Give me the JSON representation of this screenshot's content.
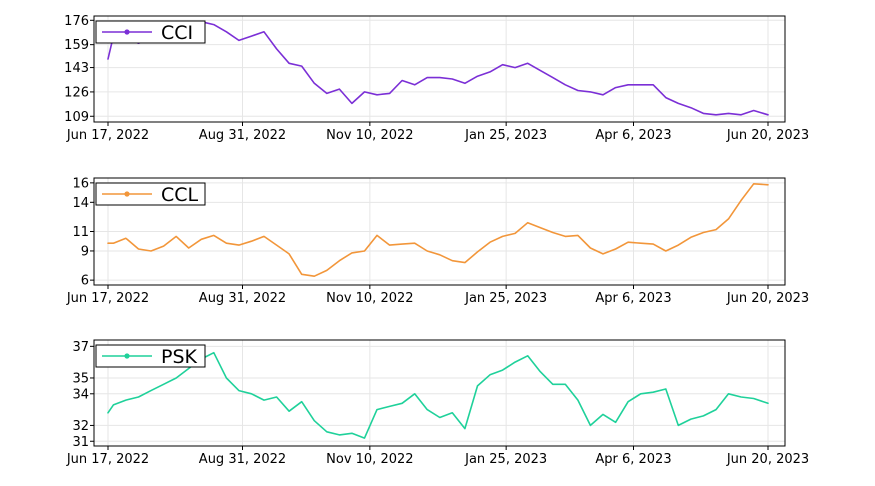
{
  "chart_data": [
    {
      "type": "line",
      "title": "",
      "series": [
        {
          "name": "CCI",
          "color": "#7b2fd6"
        }
      ],
      "x_start": "Jun 17, 2022",
      "x_end": "Jun 20, 2023",
      "x_ticks": [
        "Jun 17, 2022",
        "Aug 31, 2022",
        "Nov 10, 2022",
        "Jan 25, 2023",
        "Apr 6, 2023",
        "Jun 20, 2023"
      ],
      "y_ticks": [
        176,
        159,
        143,
        126,
        109
      ],
      "ylim": [
        105,
        179
      ],
      "grid": true,
      "legend": "top-left",
      "points": [
        [
          "Jun 17, 2022",
          149
        ],
        [
          "Jun 20, 2022",
          165
        ],
        [
          "Jun 27, 2022",
          163
        ],
        [
          "Jul 4, 2022",
          160
        ],
        [
          "Jul 11, 2022",
          163
        ],
        [
          "Jul 18, 2022",
          166
        ],
        [
          "Jul 25, 2022",
          168
        ],
        [
          "Aug 1, 2022",
          170
        ],
        [
          "Aug 8, 2022",
          175
        ],
        [
          "Aug 15, 2022",
          173
        ],
        [
          "Aug 22, 2022",
          168
        ],
        [
          "Aug 29, 2022",
          162
        ],
        [
          "Sep 5, 2022",
          165
        ],
        [
          "Sep 12, 2022",
          168
        ],
        [
          "Sep 19, 2022",
          156
        ],
        [
          "Sep 26, 2022",
          146
        ],
        [
          "Oct 3, 2022",
          144
        ],
        [
          "Oct 10, 2022",
          132
        ],
        [
          "Oct 17, 2022",
          125
        ],
        [
          "Oct 24, 2022",
          128
        ],
        [
          "Oct 31, 2022",
          118
        ],
        [
          "Nov 7, 2022",
          126
        ],
        [
          "Nov 14, 2022",
          124
        ],
        [
          "Nov 21, 2022",
          125
        ],
        [
          "Nov 28, 2022",
          134
        ],
        [
          "Dec 5, 2022",
          131
        ],
        [
          "Dec 12, 2022",
          136
        ],
        [
          "Dec 19, 2022",
          136
        ],
        [
          "Dec 26, 2022",
          135
        ],
        [
          "Jan 2, 2023",
          132
        ],
        [
          "Jan 9, 2023",
          137
        ],
        [
          "Jan 16, 2023",
          140
        ],
        [
          "Jan 23, 2023",
          145
        ],
        [
          "Jan 30, 2023",
          143
        ],
        [
          "Feb 6, 2023",
          146
        ],
        [
          "Feb 13, 2023",
          141
        ],
        [
          "Feb 20, 2023",
          136
        ],
        [
          "Feb 27, 2023",
          131
        ],
        [
          "Mar 6, 2023",
          127
        ],
        [
          "Mar 13, 2023",
          126
        ],
        [
          "Mar 20, 2023",
          124
        ],
        [
          "Mar 27, 2023",
          129
        ],
        [
          "Apr 3, 2023",
          131
        ],
        [
          "Apr 10, 2023",
          131
        ],
        [
          "Apr 17, 2023",
          131
        ],
        [
          "Apr 24, 2023",
          122
        ],
        [
          "May 1, 2023",
          118
        ],
        [
          "May 8, 2023",
          115
        ],
        [
          "May 15, 2023",
          111
        ],
        [
          "May 22, 2023",
          110
        ],
        [
          "May 29, 2023",
          111
        ],
        [
          "Jun 5, 2023",
          110
        ],
        [
          "Jun 12, 2023",
          113
        ],
        [
          "Jun 20, 2023",
          110
        ]
      ]
    },
    {
      "type": "line",
      "title": "",
      "series": [
        {
          "name": "CCL",
          "color": "#f2963a"
        }
      ],
      "x_start": "Jun 17, 2022",
      "x_end": "Jun 20, 2023",
      "x_ticks": [
        "Jun 17, 2022",
        "Aug 31, 2022",
        "Nov 10, 2022",
        "Jan 25, 2023",
        "Apr 6, 2023",
        "Jun 20, 2023"
      ],
      "y_ticks": [
        16,
        14,
        11,
        9,
        6
      ],
      "ylim": [
        5.5,
        16.5
      ],
      "grid": true,
      "legend": "top-left",
      "points": [
        [
          "Jun 17, 2022",
          9.8
        ],
        [
          "Jun 20, 2022",
          9.8
        ],
        [
          "Jun 27, 2022",
          10.3
        ],
        [
          "Jul 4, 2022",
          9.2
        ],
        [
          "Jul 11, 2022",
          9.0
        ],
        [
          "Jul 18, 2022",
          9.5
        ],
        [
          "Jul 25, 2022",
          10.5
        ],
        [
          "Aug 1, 2022",
          9.3
        ],
        [
          "Aug 8, 2022",
          10.2
        ],
        [
          "Aug 15, 2022",
          10.6
        ],
        [
          "Aug 22, 2022",
          9.8
        ],
        [
          "Aug 29, 2022",
          9.6
        ],
        [
          "Sep 5, 2022",
          10.0
        ],
        [
          "Sep 12, 2022",
          10.5
        ],
        [
          "Sep 19, 2022",
          9.6
        ],
        [
          "Sep 26, 2022",
          8.7
        ],
        [
          "Oct 3, 2022",
          6.6
        ],
        [
          "Oct 10, 2022",
          6.4
        ],
        [
          "Oct 17, 2022",
          7.0
        ],
        [
          "Oct 24, 2022",
          8.0
        ],
        [
          "Oct 31, 2022",
          8.8
        ],
        [
          "Nov 7, 2022",
          9.0
        ],
        [
          "Nov 14, 2022",
          10.6
        ],
        [
          "Nov 21, 2022",
          9.6
        ],
        [
          "Nov 28, 2022",
          9.7
        ],
        [
          "Dec 5, 2022",
          9.8
        ],
        [
          "Dec 12, 2022",
          9.0
        ],
        [
          "Dec 19, 2022",
          8.6
        ],
        [
          "Dec 26, 2022",
          8.0
        ],
        [
          "Jan 2, 2023",
          7.8
        ],
        [
          "Jan 9, 2023",
          8.9
        ],
        [
          "Jan 16, 2023",
          9.9
        ],
        [
          "Jan 23, 2023",
          10.5
        ],
        [
          "Jan 30, 2023",
          10.8
        ],
        [
          "Feb 6, 2023",
          11.9
        ],
        [
          "Feb 13, 2023",
          11.4
        ],
        [
          "Feb 20, 2023",
          10.9
        ],
        [
          "Feb 27, 2023",
          10.5
        ],
        [
          "Mar 6, 2023",
          10.6
        ],
        [
          "Mar 13, 2023",
          9.3
        ],
        [
          "Mar 20, 2023",
          8.7
        ],
        [
          "Mar 27, 2023",
          9.2
        ],
        [
          "Apr 3, 2023",
          9.9
        ],
        [
          "Apr 10, 2023",
          9.8
        ],
        [
          "Apr 17, 2023",
          9.7
        ],
        [
          "Apr 24, 2023",
          9.0
        ],
        [
          "May 1, 2023",
          9.6
        ],
        [
          "May 8, 2023",
          10.4
        ],
        [
          "May 15, 2023",
          10.9
        ],
        [
          "May 22, 2023",
          11.2
        ],
        [
          "May 29, 2023",
          12.3
        ],
        [
          "Jun 5, 2023",
          14.2
        ],
        [
          "Jun 12, 2023",
          15.9
        ],
        [
          "Jun 20, 2023",
          15.8
        ]
      ]
    },
    {
      "type": "line",
      "title": "",
      "series": [
        {
          "name": "PSK",
          "color": "#1fd19a"
        }
      ],
      "x_start": "Jun 17, 2022",
      "x_end": "Jun 20, 2023",
      "x_ticks": [
        "Jun 17, 2022",
        "Aug 31, 2022",
        "Nov 10, 2022",
        "Jan 25, 2023",
        "Apr 6, 2023",
        "Jun 20, 2023"
      ],
      "y_ticks": [
        37,
        35,
        34,
        32,
        31
      ],
      "ylim": [
        30.7,
        37.4
      ],
      "grid": true,
      "legend": "top-left",
      "points": [
        [
          "Jun 17, 2022",
          32.8
        ],
        [
          "Jun 20, 2022",
          33.3
        ],
        [
          "Jun 27, 2022",
          33.6
        ],
        [
          "Jul 4, 2022",
          33.8
        ],
        [
          "Jul 11, 2022",
          34.2
        ],
        [
          "Jul 18, 2022",
          34.6
        ],
        [
          "Jul 25, 2022",
          35.0
        ],
        [
          "Aug 1, 2022",
          35.6
        ],
        [
          "Aug 8, 2022",
          36.2
        ],
        [
          "Aug 15, 2022",
          36.6
        ],
        [
          "Aug 22, 2022",
          35.0
        ],
        [
          "Aug 29, 2022",
          34.2
        ],
        [
          "Sep 5, 2022",
          34.0
        ],
        [
          "Sep 12, 2022",
          33.6
        ],
        [
          "Sep 19, 2022",
          33.8
        ],
        [
          "Sep 26, 2022",
          32.9
        ],
        [
          "Oct 3, 2022",
          33.5
        ],
        [
          "Oct 10, 2022",
          32.3
        ],
        [
          "Oct 17, 2022",
          31.6
        ],
        [
          "Oct 24, 2022",
          31.4
        ],
        [
          "Oct 31, 2022",
          31.5
        ],
        [
          "Nov 7, 2022",
          31.2
        ],
        [
          "Nov 14, 2022",
          33.0
        ],
        [
          "Nov 21, 2022",
          33.2
        ],
        [
          "Nov 28, 2022",
          33.4
        ],
        [
          "Dec 5, 2022",
          34.0
        ],
        [
          "Dec 12, 2022",
          33.0
        ],
        [
          "Dec 19, 2022",
          32.5
        ],
        [
          "Dec 26, 2022",
          32.8
        ],
        [
          "Jan 2, 2023",
          31.8
        ],
        [
          "Jan 9, 2023",
          34.5
        ],
        [
          "Jan 16, 2023",
          35.2
        ],
        [
          "Jan 23, 2023",
          35.5
        ],
        [
          "Jan 30, 2023",
          36.0
        ],
        [
          "Feb 6, 2023",
          36.4
        ],
        [
          "Feb 13, 2023",
          35.4
        ],
        [
          "Feb 20, 2023",
          34.6
        ],
        [
          "Feb 27, 2023",
          34.6
        ],
        [
          "Mar 6, 2023",
          33.6
        ],
        [
          "Mar 13, 2023",
          32.0
        ],
        [
          "Mar 20, 2023",
          32.7
        ],
        [
          "Mar 27, 2023",
          32.2
        ],
        [
          "Apr 3, 2023",
          33.5
        ],
        [
          "Apr 10, 2023",
          34.0
        ],
        [
          "Apr 17, 2023",
          34.1
        ],
        [
          "Apr 24, 2023",
          34.3
        ],
        [
          "May 1, 2023",
          32.0
        ],
        [
          "May 8, 2023",
          32.4
        ],
        [
          "May 15, 2023",
          32.6
        ],
        [
          "May 22, 2023",
          33.0
        ],
        [
          "May 29, 2023",
          34.0
        ],
        [
          "Jun 5, 2023",
          33.8
        ],
        [
          "Jun 12, 2023",
          33.7
        ],
        [
          "Jun 20, 2023",
          33.4
        ]
      ]
    }
  ]
}
